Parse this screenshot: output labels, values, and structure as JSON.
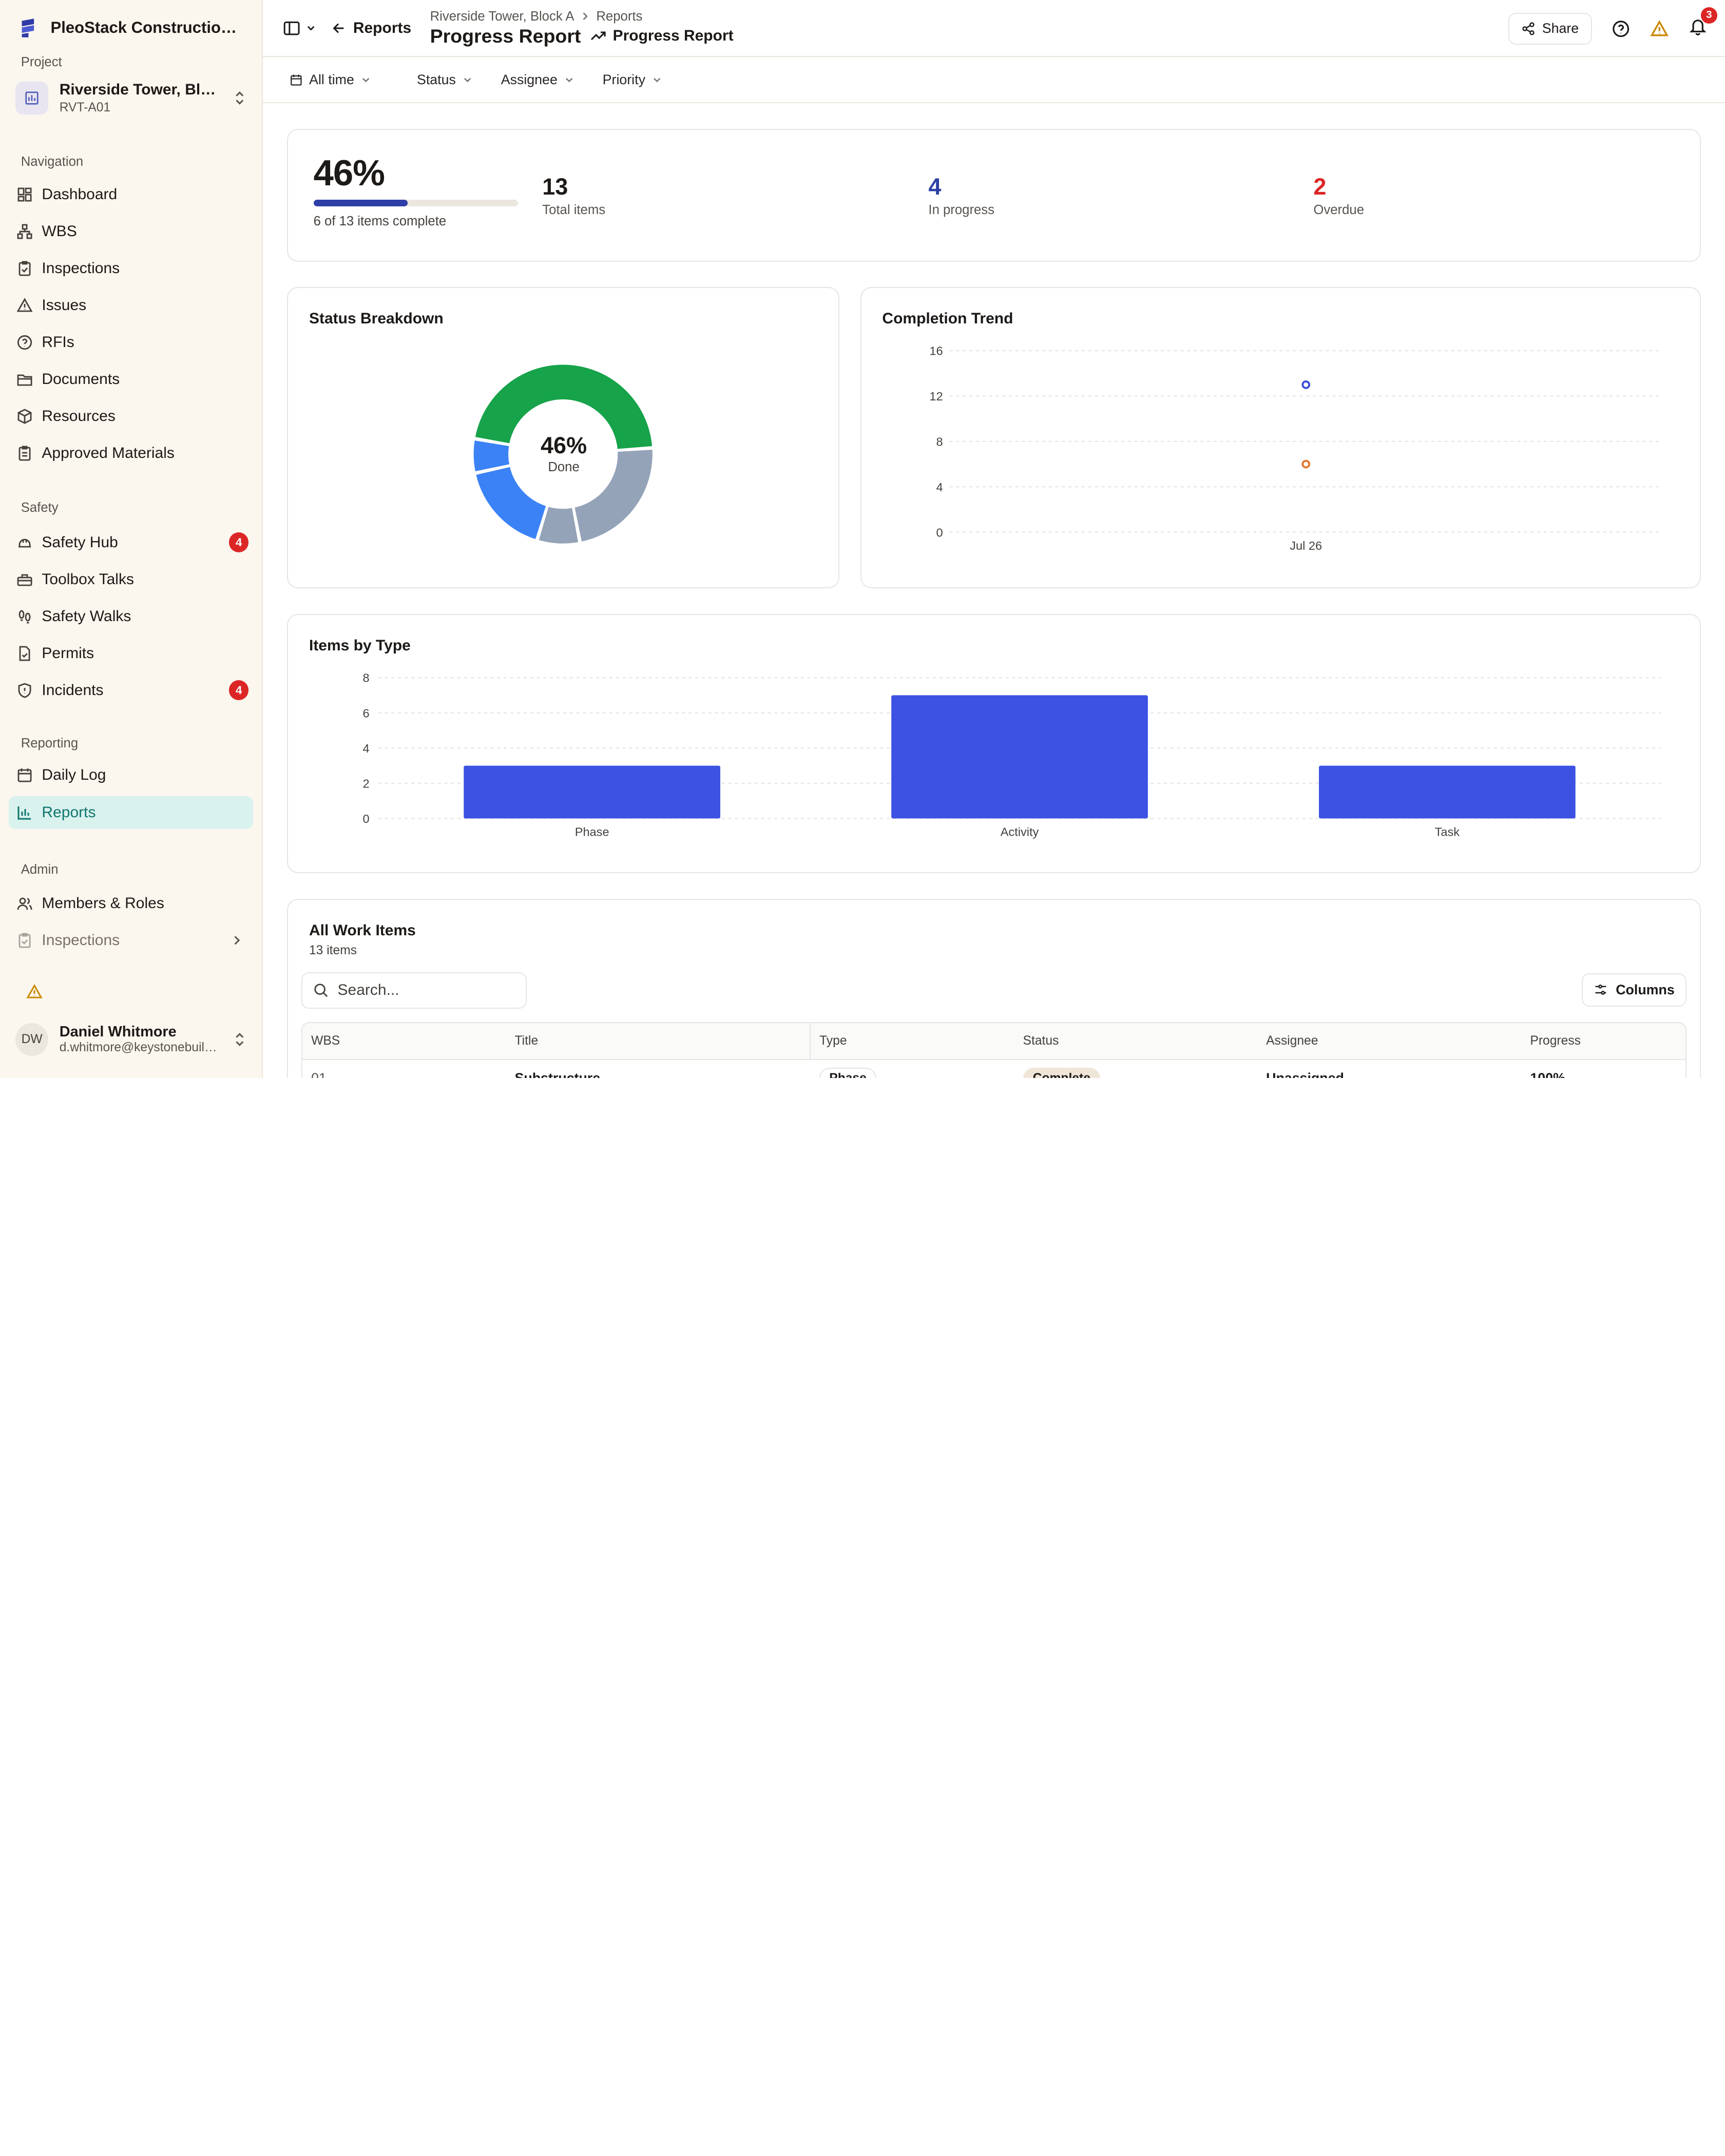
{
  "sidebar": {
    "brand": "PleoStack Construction Management",
    "project_label": "Project",
    "project_name": "Riverside Tower, Block A",
    "project_code": "RVT-A01",
    "nav_label": "Navigation",
    "nav": [
      {
        "label": "Dashboard",
        "icon": "dashboard-icon"
      },
      {
        "label": "WBS",
        "icon": "wbs-icon"
      },
      {
        "label": "Inspections",
        "icon": "clipboard-check-icon"
      },
      {
        "label": "Issues",
        "icon": "warning-icon"
      },
      {
        "label": "RFIs",
        "icon": "help-circle-icon"
      },
      {
        "label": "Documents",
        "icon": "folder-icon"
      },
      {
        "label": "Resources",
        "icon": "box-icon"
      },
      {
        "label": "Approved Materials",
        "icon": "clipboard-icon"
      }
    ],
    "safety_label": "Safety",
    "safety": [
      {
        "label": "Safety Hub",
        "badge": "4"
      },
      {
        "label": "Toolbox Talks"
      },
      {
        "label": "Safety Walks"
      },
      {
        "label": "Permits"
      },
      {
        "label": "Incidents",
        "badge": "4"
      }
    ],
    "reporting_label": "Reporting",
    "reporting": [
      {
        "label": "Daily Log"
      },
      {
        "label": "Reports"
      }
    ],
    "admin_label": "Admin",
    "admin": [
      {
        "label": "Members & Roles"
      },
      {
        "label": "Inspections"
      }
    ],
    "user": {
      "initials": "DW",
      "name": "Daniel Whitmore",
      "email": "d.whitmore@keystonebuilders.com"
    }
  },
  "topbar": {
    "back_label": "Reports",
    "breadcrumb": [
      "Riverside Tower, Block A",
      "Reports"
    ],
    "title": "Progress Report",
    "subtitle": "Progress Report",
    "share_label": "Share",
    "notification_count": "3"
  },
  "filters": {
    "time": "All time",
    "status": "Status",
    "assignee": "Assignee",
    "priority": "Priority"
  },
  "kpi": {
    "percent": "46%",
    "percent_value": 46,
    "complete_text": "6 of 13 items complete",
    "total_num": "13",
    "total_label": "Total items",
    "progress_num": "4",
    "progress_label": "In progress",
    "overdue_num": "2",
    "overdue_label": "Overdue"
  },
  "status_breakdown": {
    "title": "Status Breakdown",
    "center_value": "46%",
    "center_label": "Done",
    "chart_data": {
      "type": "pie",
      "slices": [
        {
          "value": 6,
          "color": "#16a34a"
        },
        {
          "value": 3,
          "color": "#94a3b8"
        },
        {
          "value": 1,
          "color": "#94a3b8"
        },
        {
          "value": 2.2,
          "color": "#3b82f6"
        },
        {
          "value": 0.8,
          "color": "#3b82f6"
        }
      ]
    }
  },
  "completion_trend": {
    "title": "Completion Trend",
    "chart_data": {
      "type": "scatter",
      "x": [
        "Jul 26"
      ],
      "yticks": [
        "0",
        "4",
        "8",
        "12",
        "16"
      ],
      "ylim": [
        0,
        16
      ],
      "series": [
        {
          "values": [
            13
          ],
          "color": "#3b4fd6"
        },
        {
          "values": [
            6
          ],
          "color": "#e0782f"
        }
      ]
    }
  },
  "items_by_type": {
    "title": "Items by Type",
    "chart_data": {
      "type": "bar",
      "categories": [
        "Phase",
        "Activity",
        "Task"
      ],
      "values": [
        3,
        7,
        3
      ],
      "yticks": [
        "0",
        "2",
        "4",
        "6",
        "8"
      ],
      "ylim": [
        0,
        8
      ],
      "color": "#3d52e3"
    }
  },
  "work_items": {
    "title": "All Work Items",
    "count": "13 items",
    "search_placeholder": "Search...",
    "columns_label": "Columns",
    "headers": [
      "WBS",
      "Title",
      "Type",
      "Status",
      "Assignee",
      "Progress"
    ],
    "rows": [
      {
        "wbs": "01",
        "title": "Substructure",
        "type": "Phase",
        "status": "Complete",
        "assignee": "Unassigned",
        "progress": "100%"
      }
    ]
  }
}
